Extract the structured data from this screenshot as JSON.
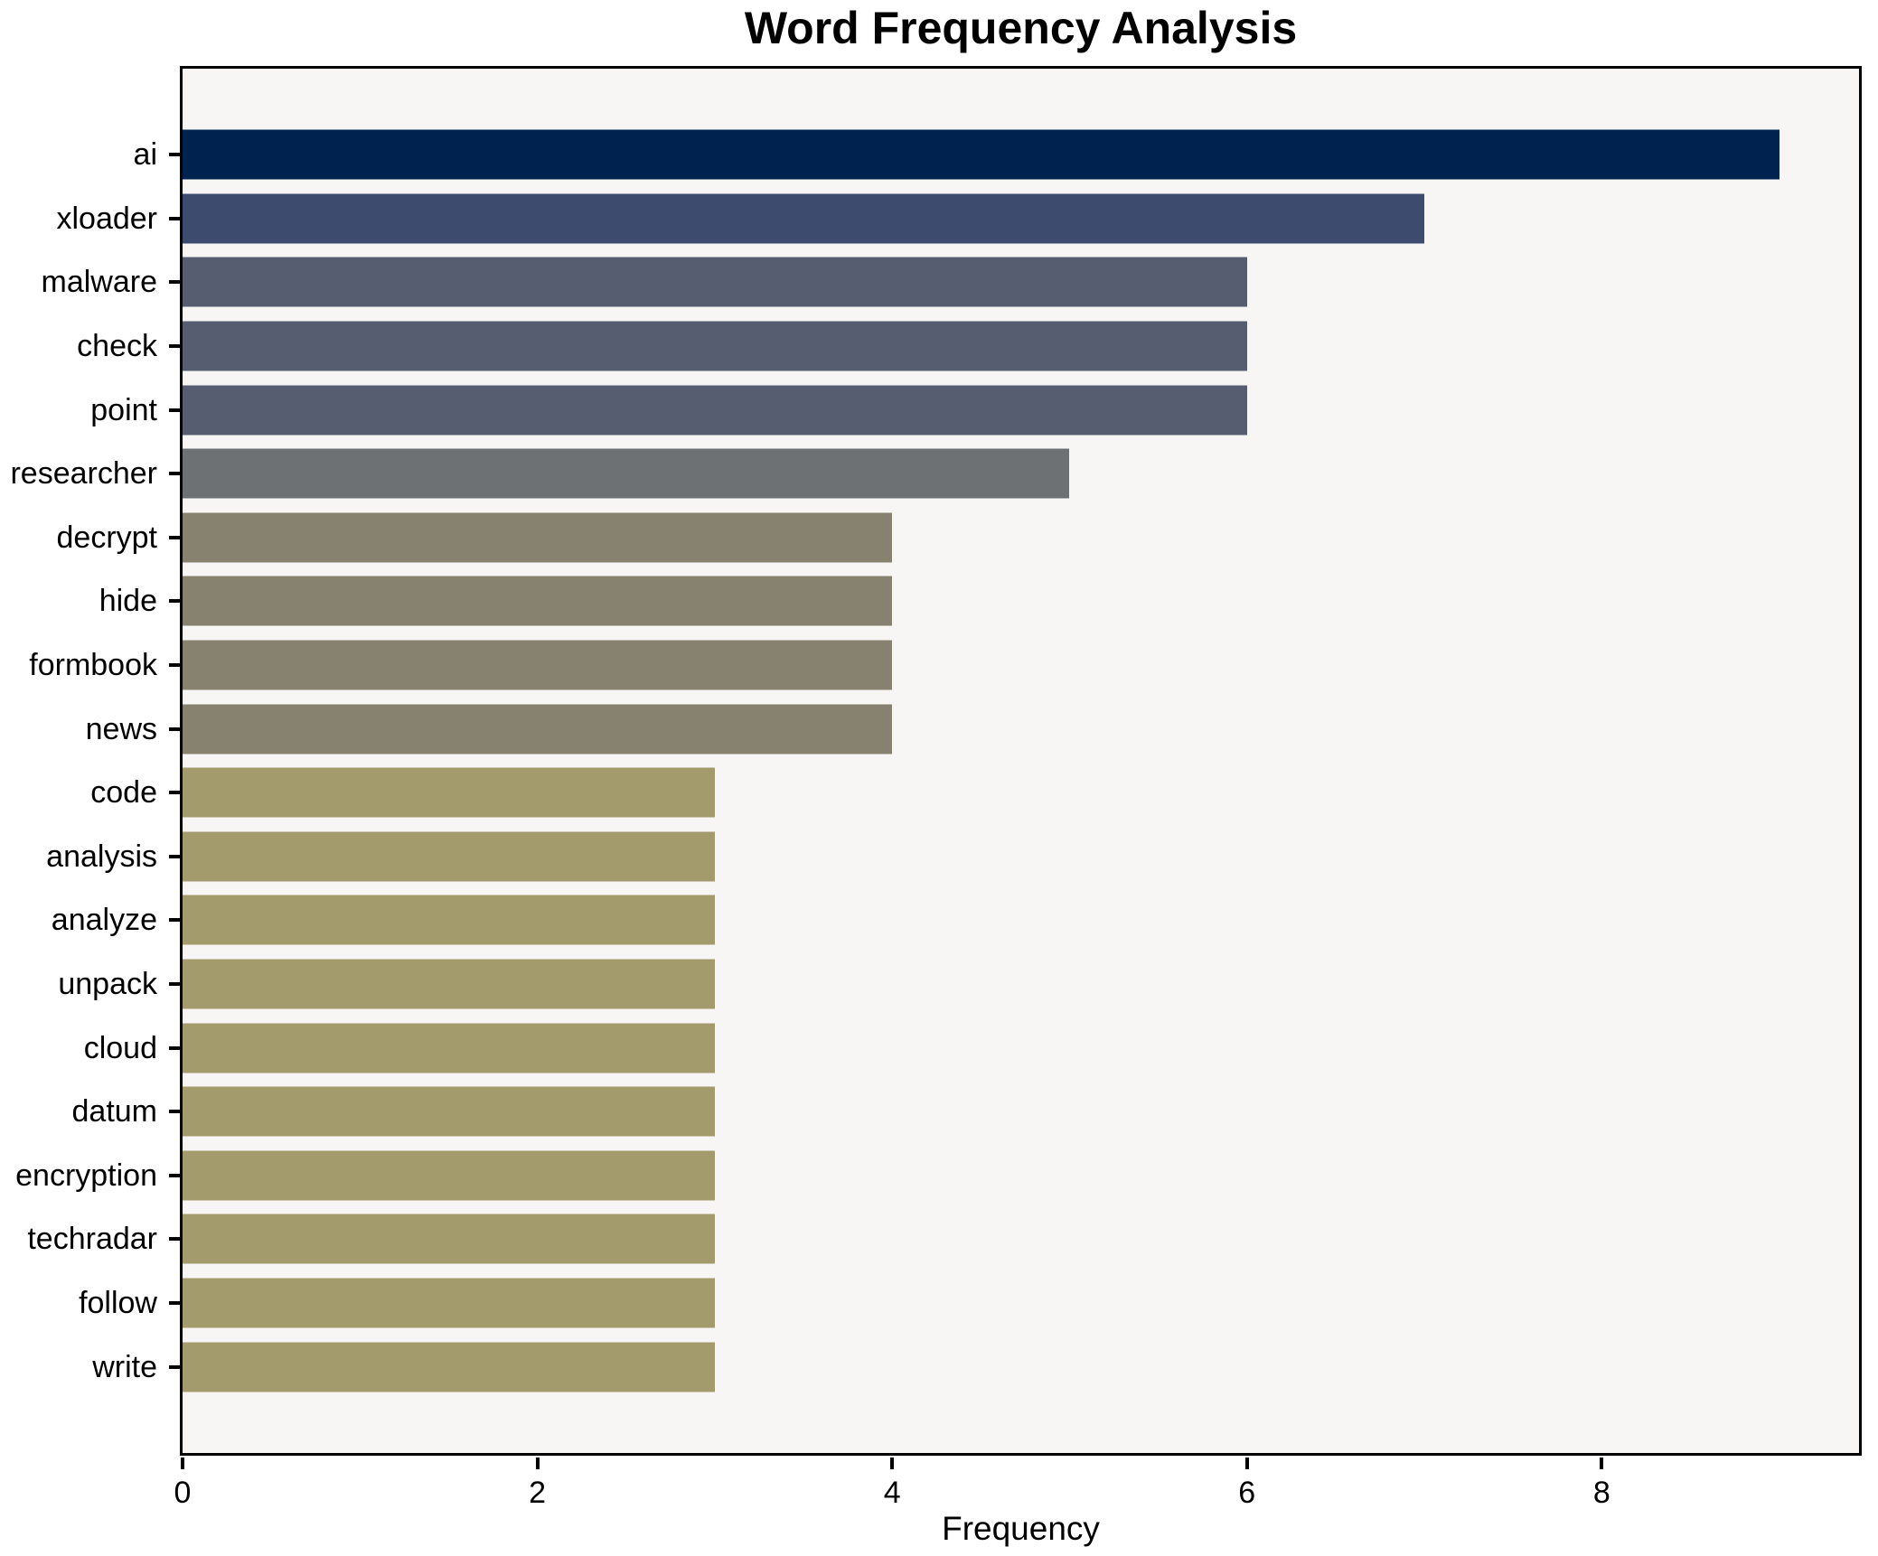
{
  "chart_data": {
    "type": "bar",
    "orientation": "horizontal",
    "title": "Word Frequency Analysis",
    "xlabel": "Frequency",
    "ylabel": "",
    "categories": [
      "ai",
      "xloader",
      "malware",
      "check",
      "point",
      "researcher",
      "decrypt",
      "hide",
      "formbook",
      "news",
      "code",
      "analysis",
      "analyze",
      "unpack",
      "cloud",
      "datum",
      "encryption",
      "techradar",
      "follow",
      "write"
    ],
    "values": [
      9,
      7,
      6,
      6,
      6,
      5,
      4,
      4,
      4,
      4,
      3,
      3,
      3,
      3,
      3,
      3,
      3,
      3,
      3,
      3
    ],
    "bar_colors": [
      "#00224e",
      "#3d4b6e",
      "#565d71",
      "#565d71",
      "#565d71",
      "#6e7174",
      "#87826f",
      "#87826f",
      "#87826f",
      "#87826f",
      "#a49b6c",
      "#a49b6c",
      "#a49b6c",
      "#a49b6c",
      "#a49b6c",
      "#a49b6c",
      "#a49b6c",
      "#a49b6c",
      "#a49b6c",
      "#a49b6c"
    ],
    "xlim": [
      0,
      9.45
    ],
    "xticks": [
      0,
      2,
      4,
      6,
      8
    ],
    "xtick_labels": [
      "0",
      "2",
      "4",
      "6",
      "8"
    ],
    "grid": false,
    "legend": "none",
    "plot_background": "#f7f6f4",
    "figure_background": "#ffffff",
    "spine_color": "#000000",
    "text_color": "#000000"
  }
}
